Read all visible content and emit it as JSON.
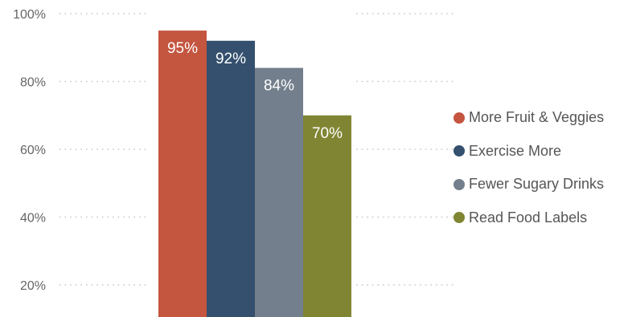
{
  "chart_data": {
    "type": "bar",
    "categories": [
      "More Fruit & Veggies",
      "Exercise More",
      "Fewer Sugary Drinks",
      "Read Food Labels"
    ],
    "values": [
      95,
      92,
      84,
      70
    ],
    "data_labels": [
      "95%",
      "92%",
      "84%",
      "70%"
    ],
    "colors": [
      "#c4553f",
      "#34506e",
      "#737f8c",
      "#808533"
    ],
    "ylim": [
      15,
      100
    ],
    "yticks": [
      20,
      40,
      60,
      80,
      100
    ],
    "ytick_labels": [
      "20%",
      "40%",
      "60%",
      "80%",
      "100%"
    ],
    "grid": true,
    "legend": {
      "position": "right",
      "entries": [
        "More Fruit & Veggies",
        "Exercise More",
        "Fewer Sugary Drinks",
        "Read Food Labels"
      ]
    }
  }
}
